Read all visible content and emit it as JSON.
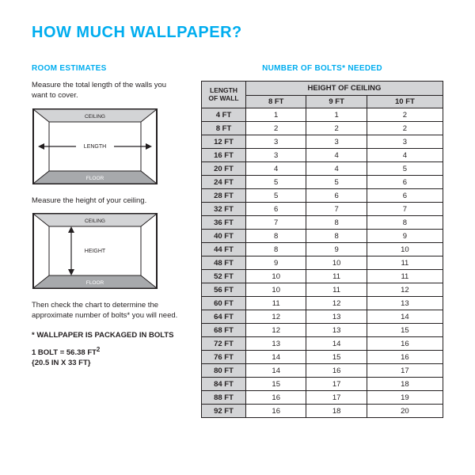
{
  "title": "HOW MUCH WALLPAPER?",
  "left": {
    "section_head": "ROOM ESTIMATES",
    "instr1": "Measure the total length of the walls you want to cover.",
    "instr2": "Measure the height of your ceiling.",
    "instr3": "Then check the chart to determine the approximate number of bolts* you will need.",
    "diagram_labels": {
      "ceiling": "CEILING",
      "length": "LENGTH",
      "height": "HEIGHT",
      "floor": "FLOOR"
    },
    "foot1": "* WALLPAPER IS PACKAGED IN BOLTS",
    "foot2a": "1 BOLT = 56.38 FT",
    "foot2sup": "2",
    "foot3": "{20.5 IN X 33 FT}"
  },
  "table": {
    "section_head": "NUMBER OF BOLTS* NEEDED",
    "corner_line1": "LENGTH",
    "corner_line2": "OF WALL",
    "span_head": "HEIGHT OF CEILING",
    "col_heads": [
      "8 FT",
      "9 FT",
      "10 FT"
    ],
    "rows": [
      {
        "h": "4 FT",
        "v": [
          "1",
          "1",
          "2"
        ]
      },
      {
        "h": "8 FT",
        "v": [
          "2",
          "2",
          "2"
        ]
      },
      {
        "h": "12 FT",
        "v": [
          "3",
          "3",
          "3"
        ]
      },
      {
        "h": "16 FT",
        "v": [
          "3",
          "4",
          "4"
        ]
      },
      {
        "h": "20 FT",
        "v": [
          "4",
          "4",
          "5"
        ]
      },
      {
        "h": "24 FT",
        "v": [
          "5",
          "5",
          "6"
        ]
      },
      {
        "h": "28 FT",
        "v": [
          "5",
          "6",
          "6"
        ]
      },
      {
        "h": "32 FT",
        "v": [
          "6",
          "7",
          "7"
        ]
      },
      {
        "h": "36 FT",
        "v": [
          "7",
          "8",
          "8"
        ]
      },
      {
        "h": "40 FT",
        "v": [
          "8",
          "8",
          "9"
        ]
      },
      {
        "h": "44 FT",
        "v": [
          "8",
          "9",
          "10"
        ]
      },
      {
        "h": "48 FT",
        "v": [
          "9",
          "10",
          "11"
        ]
      },
      {
        "h": "52 FT",
        "v": [
          "10",
          "11",
          "11"
        ]
      },
      {
        "h": "56 FT",
        "v": [
          "10",
          "11",
          "12"
        ]
      },
      {
        "h": "60 FT",
        "v": [
          "11",
          "12",
          "13"
        ]
      },
      {
        "h": "64 FT",
        "v": [
          "12",
          "13",
          "14"
        ]
      },
      {
        "h": "68 FT",
        "v": [
          "12",
          "13",
          "15"
        ]
      },
      {
        "h": "72 FT",
        "v": [
          "13",
          "14",
          "16"
        ]
      },
      {
        "h": "76 FT",
        "v": [
          "14",
          "15",
          "16"
        ]
      },
      {
        "h": "80 FT",
        "v": [
          "14",
          "16",
          "17"
        ]
      },
      {
        "h": "84 FT",
        "v": [
          "15",
          "17",
          "18"
        ]
      },
      {
        "h": "88 FT",
        "v": [
          "16",
          "17",
          "19"
        ]
      },
      {
        "h": "92 FT",
        "v": [
          "16",
          "18",
          "20"
        ]
      }
    ]
  },
  "colors": {
    "accent": "#00adef",
    "header_bg": "#d3d4d6",
    "border": "#231f20",
    "text": "#231f20"
  }
}
